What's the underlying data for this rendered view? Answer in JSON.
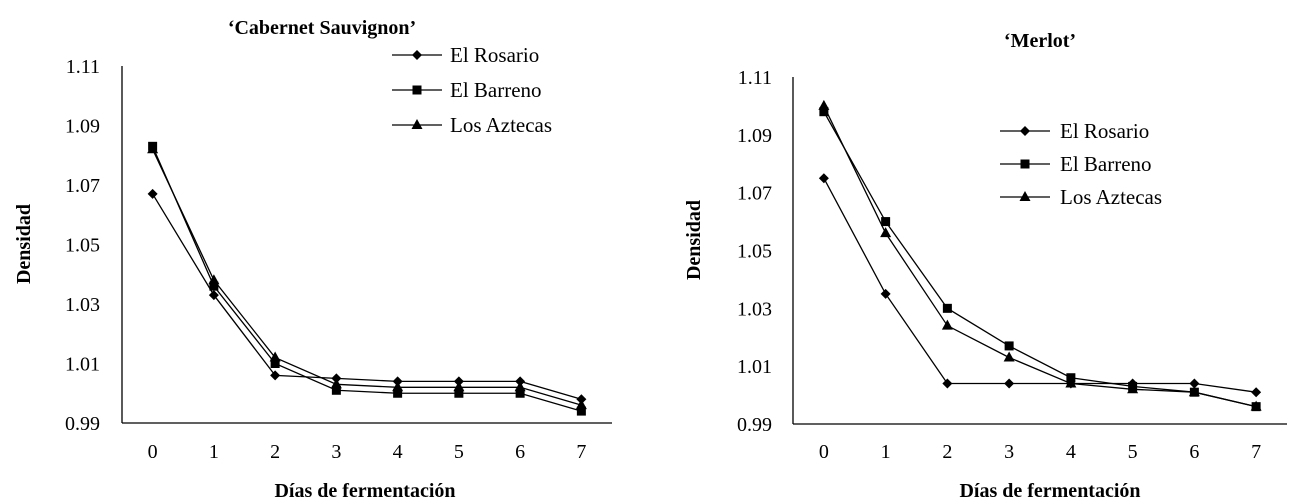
{
  "chart_data": [
    {
      "type": "line",
      "title": "‘Cabernet Sauvignon’",
      "xlabel": "Días de fermentación",
      "ylabel": "Densidad",
      "x": [
        0,
        1,
        2,
        3,
        4,
        5,
        6,
        7
      ],
      "yticks": [
        "0.99",
        "1.01",
        "1.03",
        "1.05",
        "1.07",
        "1.09",
        "1.11"
      ],
      "ylim": [
        0.99,
        1.11
      ],
      "grid": false,
      "legend_position": "top-right",
      "series": [
        {
          "name": "El Rosario",
          "marker": "diamond",
          "values": [
            1.067,
            1.033,
            1.006,
            1.005,
            1.004,
            1.004,
            1.004,
            0.998
          ]
        },
        {
          "name": "El Barreno",
          "marker": "square",
          "values": [
            1.083,
            1.036,
            1.01,
            1.001,
            1.0,
            1.0,
            1.0,
            0.994
          ]
        },
        {
          "name": "Los Aztecas",
          "marker": "triangle",
          "values": [
            1.082,
            1.038,
            1.012,
            1.003,
            1.002,
            1.002,
            1.002,
            0.996
          ]
        }
      ]
    },
    {
      "type": "line",
      "title": "‘Merlot’",
      "xlabel": "Días de fermentación",
      "ylabel": "Densidad",
      "x": [
        0,
        1,
        2,
        3,
        4,
        5,
        6,
        7
      ],
      "yticks": [
        "0.99",
        "1.01",
        "1.03",
        "1.05",
        "1.07",
        "1.09",
        "1.11"
      ],
      "ylim": [
        0.99,
        1.11
      ],
      "grid": false,
      "legend_position": "top-right",
      "series": [
        {
          "name": "El Rosario",
          "marker": "diamond",
          "values": [
            1.075,
            1.035,
            1.004,
            1.004,
            1.004,
            1.004,
            1.004,
            1.001
          ]
        },
        {
          "name": "El Barreno",
          "marker": "square",
          "values": [
            1.098,
            1.06,
            1.03,
            1.017,
            1.006,
            1.003,
            1.001,
            0.996
          ]
        },
        {
          "name": "Los Aztecas",
          "marker": "triangle",
          "values": [
            1.1,
            1.056,
            1.024,
            1.013,
            1.004,
            1.002,
            1.001,
            0.996
          ]
        }
      ]
    }
  ]
}
